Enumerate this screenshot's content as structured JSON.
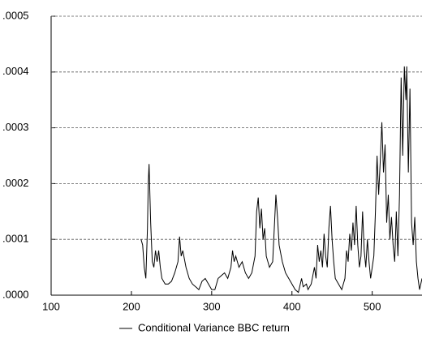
{
  "chart_data": {
    "type": "line",
    "x": [
      212,
      214,
      216,
      218,
      220,
      221,
      222,
      224,
      226,
      228,
      230,
      232,
      234,
      236,
      238,
      242,
      246,
      250,
      254,
      258,
      260,
      262,
      264,
      268,
      272,
      276,
      280,
      284,
      288,
      292,
      296,
      300,
      304,
      308,
      312,
      316,
      320,
      324,
      326,
      328,
      330,
      334,
      338,
      342,
      346,
      350,
      354,
      356,
      358,
      360,
      362,
      364,
      366,
      368,
      372,
      376,
      378,
      380,
      382,
      384,
      388,
      392,
      396,
      400,
      404,
      408,
      412,
      414,
      418,
      420,
      424,
      428,
      430,
      432,
      434,
      436,
      438,
      440,
      442,
      444,
      446,
      448,
      450,
      452,
      454,
      458,
      462,
      466,
      468,
      470,
      472,
      474,
      476,
      478,
      480,
      482,
      484,
      486,
      488,
      490,
      492,
      494,
      496,
      498,
      500,
      502,
      504,
      506,
      508,
      510,
      512,
      514,
      516,
      518,
      520,
      522,
      524,
      526,
      528,
      530,
      532,
      534,
      536,
      538,
      540,
      542,
      543,
      545,
      547,
      549,
      551,
      553,
      555,
      557,
      559,
      562
    ],
    "series": [
      {
        "name": "Conditional Variance BBC return",
        "color": "#000000",
        "values": [
          0.0001,
          9e-05,
          5e-05,
          3e-05,
          0.00012,
          0.0002,
          0.000235,
          0.00013,
          6e-05,
          5e-05,
          8e-05,
          6e-05,
          8e-05,
          5e-05,
          3e-05,
          2e-05,
          2e-05,
          2.5e-05,
          4e-05,
          6e-05,
          0.000105,
          7e-05,
          8e-05,
          5e-05,
          3e-05,
          2e-05,
          1.5e-05,
          1e-05,
          2.5e-05,
          3e-05,
          2e-05,
          1e-05,
          1e-05,
          3e-05,
          3.5e-05,
          4e-05,
          3e-05,
          5e-05,
          8e-05,
          6e-05,
          7e-05,
          5e-05,
          6e-05,
          4e-05,
          3e-05,
          4e-05,
          7e-05,
          0.00015,
          0.000175,
          0.00012,
          0.000155,
          0.0001,
          0.00012,
          7e-05,
          5e-05,
          6e-05,
          0.00012,
          0.00018,
          0.00014,
          9e-05,
          6e-05,
          4e-05,
          3e-05,
          2e-05,
          1e-05,
          5e-06,
          3e-05,
          1.5e-05,
          2e-05,
          1e-05,
          2e-05,
          5e-05,
          3e-05,
          9e-05,
          6e-05,
          8e-05,
          5e-05,
          0.00011,
          7e-05,
          5e-05,
          0.00012,
          0.00016,
          0.0001,
          6e-05,
          3e-05,
          2e-05,
          1e-05,
          3e-05,
          8e-05,
          6e-05,
          0.00011,
          8e-05,
          0.00013,
          9e-05,
          0.00016,
          9e-05,
          5e-05,
          7e-05,
          0.00015,
          8e-05,
          5e-05,
          0.0001,
          6e-05,
          3e-05,
          5e-05,
          7e-05,
          0.00015,
          0.00025,
          0.00018,
          0.00024,
          0.00031,
          0.00022,
          0.00027,
          0.00013,
          0.00018,
          0.0001,
          0.00014,
          9e-05,
          6e-05,
          0.00015,
          7e-05,
          0.00018,
          0.00039,
          0.00025,
          0.00041,
          0.00035,
          0.00041,
          0.00022,
          0.00037,
          0.00013,
          9e-05,
          0.00014,
          6e-05,
          3e-05,
          1e-05,
          3e-05
        ]
      }
    ],
    "xlim": [
      100,
      562
    ],
    "xticks": [
      100,
      200,
      300,
      400,
      500
    ],
    "ylim": [
      0,
      0.0005
    ],
    "yticks": [
      {
        "value": 0,
        "label": ".0000"
      },
      {
        "value": 0.0001,
        "label": ".0001"
      },
      {
        "value": 0.0002,
        "label": ".0002"
      },
      {
        "value": 0.0003,
        "label": ".0003"
      },
      {
        "value": 0.0004,
        "label": ".0004"
      },
      {
        "value": 0.0005,
        "label": ".0005"
      }
    ],
    "grid": true
  }
}
